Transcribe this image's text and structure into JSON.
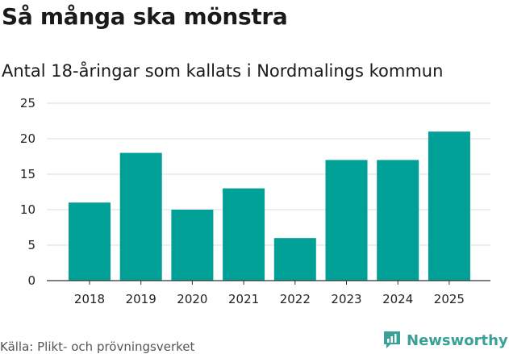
{
  "header": {
    "title": "Så många ska mönstra",
    "subtitle": "Antal 18-åringar som kallats i Nordmalings kommun"
  },
  "footer": {
    "source": "Källa: Plikt- och prövningsverket",
    "brand": "Newsworthy"
  },
  "colors": {
    "bar": "#00a096",
    "grid": "#dddddd",
    "axis": "#333333",
    "brand": "#3aa196"
  },
  "chart_data": {
    "type": "bar",
    "title": "Så många ska mönstra",
    "subtitle": "Antal 18-åringar som kallats i Nordmalings kommun",
    "xlabel": "",
    "ylabel": "",
    "categories": [
      "2018",
      "2019",
      "2020",
      "2021",
      "2022",
      "2023",
      "2024",
      "2025"
    ],
    "values": [
      11,
      18,
      10,
      13,
      6,
      17,
      17,
      21
    ],
    "ylim": [
      0,
      25
    ],
    "yticks": [
      0,
      5,
      10,
      15,
      20,
      25
    ],
    "grid": true,
    "legend": "none"
  }
}
